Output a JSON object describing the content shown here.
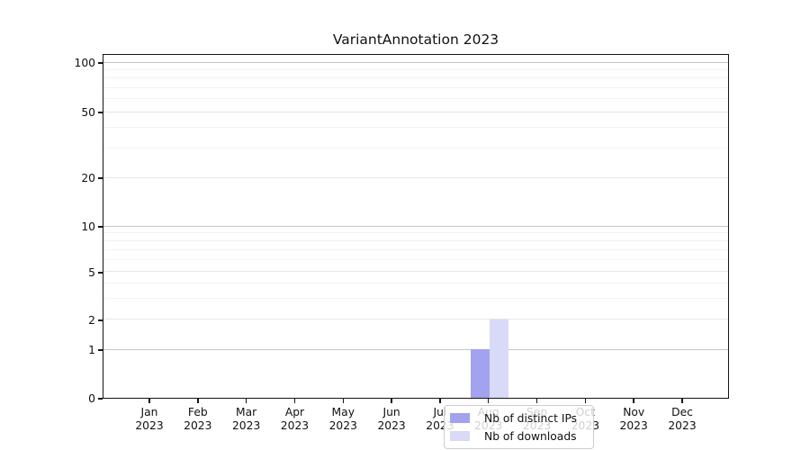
{
  "title": "VariantAnnotation 2023",
  "chart_data": {
    "type": "bar",
    "categories": [
      "Jan",
      "Feb",
      "Mar",
      "Apr",
      "May",
      "Jun",
      "Jul",
      "Aug",
      "Sep",
      "Oct",
      "Nov",
      "Dec"
    ],
    "year": "2023",
    "series": [
      {
        "name": "Nb of distinct IPs",
        "color": "#a2a2ee",
        "values": [
          0,
          0,
          0,
          0,
          0,
          0,
          0,
          1,
          0,
          0,
          0,
          0
        ]
      },
      {
        "name": "Nb of downloads",
        "color": "#d9d9f8",
        "values": [
          0,
          0,
          0,
          0,
          0,
          0,
          0,
          2,
          0,
          0,
          0,
          0
        ]
      }
    ],
    "y_ticks": [
      0,
      1,
      2,
      5,
      10,
      20,
      50,
      100
    ],
    "y_scale": "symlog-like (0 then log 1..100)",
    "ylim": [
      0,
      110
    ],
    "grid": "horizontal",
    "legend_position": "lower-center",
    "legend_entries": [
      "Nb of distinct IPs",
      "Nb of downloads"
    ]
  },
  "colors": {
    "spine": "#141414",
    "grid_decade": "#c4c4c4",
    "grid_sub": "#e7e7e7",
    "grid_minor": "#f2f2f2",
    "text": "#111111",
    "background": "#ffffff"
  }
}
